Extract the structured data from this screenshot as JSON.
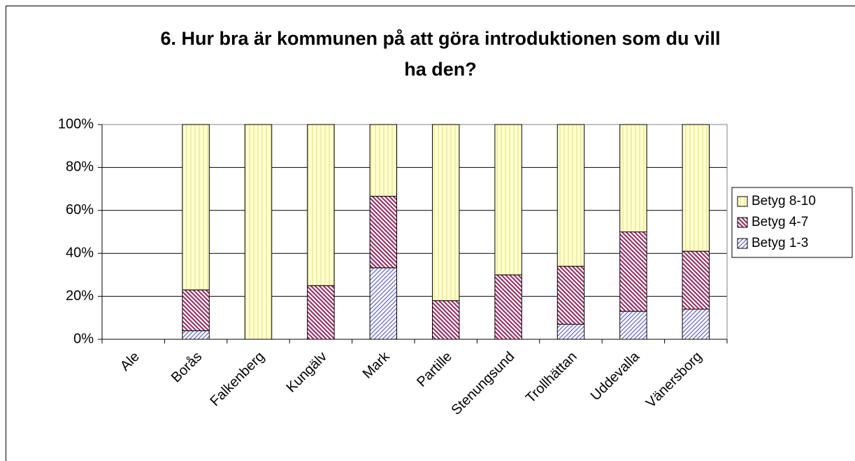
{
  "chart_data": {
    "type": "bar",
    "stacked": true,
    "title": [
      "6. Hur bra är kommunen på att göra introduktionen som du vill",
      "ha den?"
    ],
    "categories": [
      "Ale",
      "Borås",
      "Falkenberg",
      "Kungälv",
      "Mark",
      "Partille",
      "Stenungsund",
      "Trollhättan",
      "Uddevalla",
      "Vänersborg"
    ],
    "series": [
      {
        "name": "Betyg 1-3",
        "color": "#6666cc",
        "hatch": "/",
        "values": [
          0,
          4,
          0,
          0,
          33.3,
          0,
          0,
          7,
          13,
          14
        ]
      },
      {
        "name": "Betyg 4-7",
        "color": "#993366",
        "hatch": "\\",
        "values": [
          0,
          19,
          0,
          25,
          33.3,
          18,
          30,
          27,
          37,
          27
        ]
      },
      {
        "name": "Betyg 8-10",
        "color": "#e6e699",
        "hatch": "|",
        "values": [
          0,
          77,
          100,
          75,
          33.4,
          82,
          70,
          66,
          50,
          59
        ]
      }
    ],
    "ylim": [
      0,
      100
    ],
    "yticks": [
      {
        "value": 0,
        "label": "0%"
      },
      {
        "value": 20,
        "label": "20%"
      },
      {
        "value": 40,
        "label": "40%"
      },
      {
        "value": 60,
        "label": "60%"
      },
      {
        "value": 80,
        "label": "80%"
      },
      {
        "value": 100,
        "label": "100%"
      }
    ],
    "grid": true,
    "legend": "right"
  }
}
